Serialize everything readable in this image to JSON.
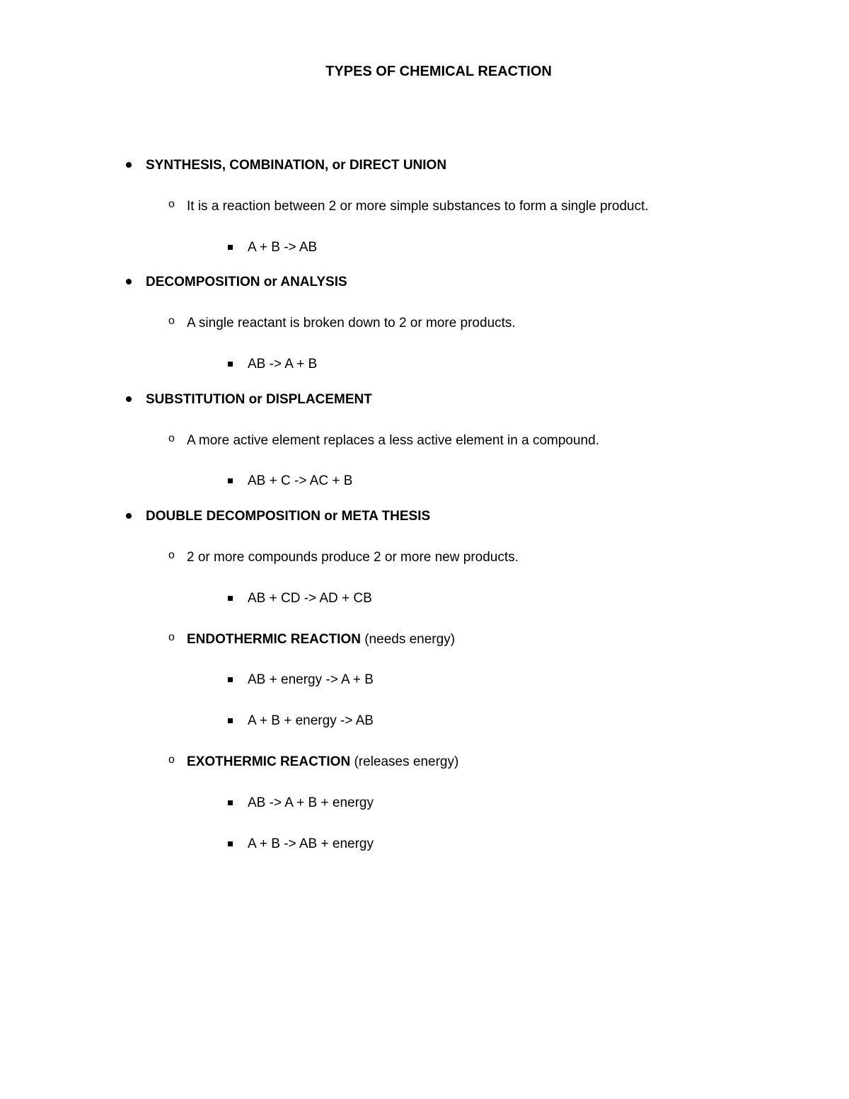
{
  "document": {
    "title": "TYPES OF CHEMICAL REACTION",
    "background_color": "#ffffff",
    "text_color": "#000000",
    "title_fontsize": 20,
    "body_fontsize": 19,
    "sections": [
      {
        "heading": "SYNTHESIS, COMBINATION, or DIRECT UNION",
        "items": [
          {
            "text": "It is a reaction between 2 or more simple substances to form a single product.",
            "formulas": [
              "A + B -> AB"
            ]
          }
        ]
      },
      {
        "heading": "DECOMPOSITION or ANALYSIS",
        "items": [
          {
            "text": "A single reactant is broken down to 2 or more products.",
            "formulas": [
              "AB -> A + B"
            ]
          }
        ]
      },
      {
        "heading": "SUBSTITUTION or DISPLACEMENT",
        "items": [
          {
            "text": "A more active element replaces a less active element in a compound.",
            "formulas": [
              "AB + C -> AC + B"
            ]
          }
        ]
      },
      {
        "heading": "DOUBLE DECOMPOSITION or META THESIS",
        "items": [
          {
            "text": "2 or more compounds produce 2 or more new products.",
            "formulas": [
              "AB + CD -> AD + CB"
            ]
          },
          {
            "bold_prefix": "ENDOTHERMIC REACTION",
            "suffix": " (needs energy)",
            "formulas": [
              "AB + energy -> A + B",
              "A + B + energy -> AB"
            ]
          },
          {
            "bold_prefix": "EXOTHERMIC REACTION",
            "suffix": " (releases energy)",
            "formulas": [
              "AB -> A + B + energy",
              "A + B -> AB + energy"
            ]
          }
        ]
      }
    ]
  }
}
